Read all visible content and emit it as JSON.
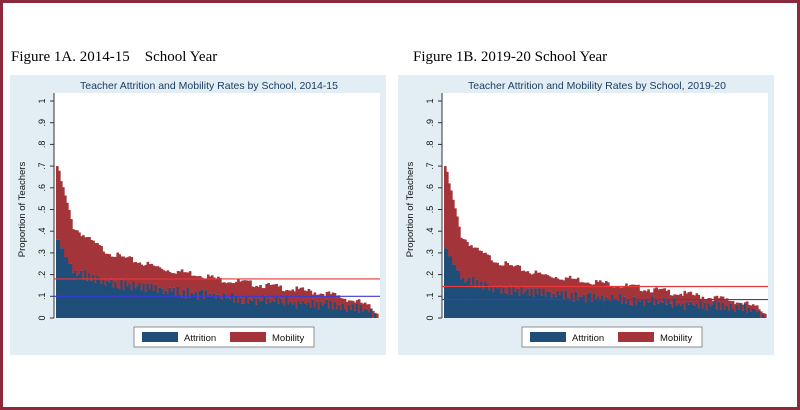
{
  "figures": {
    "a": {
      "heading": "Figure 1A. 2014-15    School Year"
    },
    "b": {
      "heading": "Figure 1B. 2019-20 School Year"
    }
  },
  "chart_data": [
    {
      "type": "bar",
      "title": "Teacher Attrition and Mobility Rates by School, 2014-15",
      "xlabel": "",
      "ylabel": "Proportion of Teachers",
      "ylim": [
        0,
        1
      ],
      "yticks": [
        0,
        0.1,
        0.2,
        0.3,
        0.4,
        0.5,
        0.6,
        0.7,
        0.8,
        0.9,
        1
      ],
      "ytick_labels": [
        "0",
        ".1",
        ".2",
        ".3",
        ".4",
        ".5",
        ".6",
        ".7",
        ".8",
        ".9",
        "1"
      ],
      "stacked": true,
      "schools_sorted_desc": true,
      "profile": {
        "total_rate_quantiles": [
          0.7,
          0.42,
          0.36,
          0.31,
          0.28,
          0.26,
          0.24,
          0.22,
          0.21,
          0.2,
          0.18,
          0.17,
          0.16,
          0.15,
          0.14,
          0.13,
          0.12,
          0.11,
          0.09,
          0.07,
          0.03
        ],
        "attrition_rate_quantiles": [
          0.36,
          0.22,
          0.19,
          0.17,
          0.155,
          0.145,
          0.135,
          0.125,
          0.115,
          0.11,
          0.1,
          0.09,
          0.085,
          0.08,
          0.075,
          0.07,
          0.065,
          0.06,
          0.05,
          0.04,
          0.02
        ]
      },
      "series": [
        {
          "name": "Attrition",
          "color": "#1f4e79"
        },
        {
          "name": "Mobility",
          "color": "#a3343a"
        }
      ],
      "reference_lines": [
        {
          "value": 0.18,
          "color": "#e8383a"
        },
        {
          "value": 0.1,
          "color": "#3a3ad8"
        }
      ],
      "legend": "bottom",
      "grid": false
    },
    {
      "type": "bar",
      "title": "Teacher Attrition and Mobility Rates by School, 2019-20",
      "xlabel": "",
      "ylabel": "Proportion of Teachers",
      "ylim": [
        0,
        1
      ],
      "yticks": [
        0,
        0.1,
        0.2,
        0.3,
        0.4,
        0.5,
        0.6,
        0.7,
        0.8,
        0.9,
        1
      ],
      "ytick_labels": [
        "0",
        ".1",
        ".2",
        ".3",
        ".4",
        ".5",
        ".6",
        ".7",
        ".8",
        ".9",
        "1"
      ],
      "stacked": true,
      "schools_sorted_desc": true,
      "profile": {
        "total_rate_quantiles": [
          0.7,
          0.38,
          0.31,
          0.27,
          0.24,
          0.22,
          0.2,
          0.19,
          0.18,
          0.17,
          0.16,
          0.15,
          0.14,
          0.13,
          0.12,
          0.11,
          0.1,
          0.09,
          0.08,
          0.06,
          0.03
        ],
        "attrition_rate_quantiles": [
          0.32,
          0.19,
          0.16,
          0.14,
          0.13,
          0.12,
          0.115,
          0.11,
          0.1,
          0.095,
          0.09,
          0.085,
          0.08,
          0.075,
          0.07,
          0.065,
          0.06,
          0.055,
          0.05,
          0.04,
          0.02
        ]
      },
      "series": [
        {
          "name": "Attrition",
          "color": "#1f4e79"
        },
        {
          "name": "Mobility",
          "color": "#a3343a"
        }
      ],
      "reference_lines": [
        {
          "value": 0.145,
          "color": "#e8383a"
        },
        {
          "value": 0.085,
          "color": "#3a3ad8"
        }
      ],
      "legend": "bottom",
      "grid": false
    }
  ]
}
